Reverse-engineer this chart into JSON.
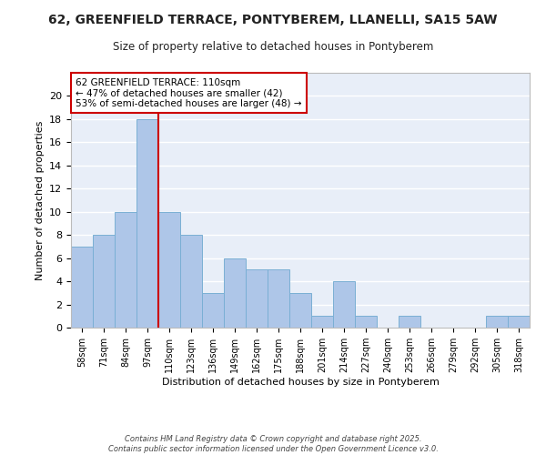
{
  "title": "62, GREENFIELD TERRACE, PONTYBEREM, LLANELLI, SA15 5AW",
  "subtitle": "Size of property relative to detached houses in Pontyberem",
  "xlabel": "Distribution of detached houses by size in Pontyberem",
  "ylabel": "Number of detached properties",
  "categories": [
    "58sqm",
    "71sqm",
    "84sqm",
    "97sqm",
    "110sqm",
    "123sqm",
    "136sqm",
    "149sqm",
    "162sqm",
    "175sqm",
    "188sqm",
    "201sqm",
    "214sqm",
    "227sqm",
    "240sqm",
    "253sqm",
    "266sqm",
    "279sqm",
    "292sqm",
    "305sqm",
    "318sqm"
  ],
  "values": [
    7,
    8,
    10,
    18,
    10,
    8,
    3,
    6,
    5,
    5,
    3,
    1,
    4,
    1,
    0,
    1,
    0,
    0,
    0,
    1,
    1
  ],
  "bar_color": "#aec6e8",
  "bar_edge_color": "#7aafd4",
  "vline_color": "#cc0000",
  "annotation_text": "62 GREENFIELD TERRACE: 110sqm\n← 47% of detached houses are smaller (42)\n53% of semi-detached houses are larger (48) →",
  "annotation_box_color": "#ffffff",
  "annotation_box_edge": "#cc0000",
  "ylim": [
    0,
    22
  ],
  "yticks": [
    0,
    2,
    4,
    6,
    8,
    10,
    12,
    14,
    16,
    18,
    20
  ],
  "background_color": "#e8eef8",
  "grid_color": "#ffffff",
  "footer": "Contains HM Land Registry data © Crown copyright and database right 2025.\nContains public sector information licensed under the Open Government Licence v3.0.",
  "title_fontsize": 10,
  "subtitle_fontsize": 8.5,
  "xlabel_fontsize": 8,
  "ylabel_fontsize": 8
}
